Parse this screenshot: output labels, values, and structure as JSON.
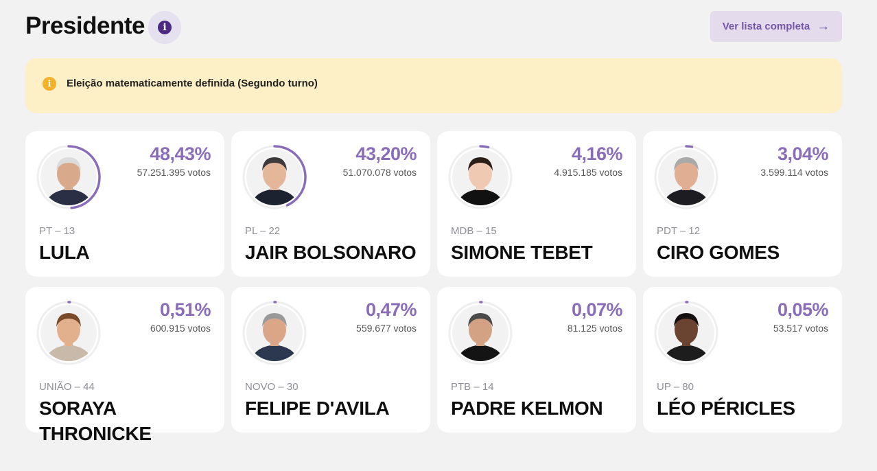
{
  "header": {
    "title": "Presidente",
    "info_icon": "info-icon",
    "full_list_label": "Ver lista completa",
    "arrow_icon": "arrow-right-icon"
  },
  "alert": {
    "icon": "info-icon",
    "text": "Eleição matematicamente definida (Segundo turno)"
  },
  "colors": {
    "accent": "#8a6db9",
    "alert_bg": "#fdefc6",
    "alert_icon": "#f6b12b"
  },
  "candidates": [
    {
      "percent_label": "48,43%",
      "percent": 48.43,
      "votes": "57.251.395 votos",
      "party": "PT – 13",
      "name": "LULA",
      "skin": "#d9a98b",
      "hair": "#dcdcdc",
      "shirt": "#2a2f45"
    },
    {
      "percent_label": "43,20%",
      "percent": 43.2,
      "votes": "51.070.078 votos",
      "party": "PL – 22",
      "name": "JAIR BOLSONARO",
      "skin": "#e4b69a",
      "hair": "#3c3a3a",
      "shirt": "#1d2230"
    },
    {
      "percent_label": "4,16%",
      "percent": 4.16,
      "votes": "4.915.185 votos",
      "party": "MDB – 15",
      "name": "SIMONE TEBET",
      "skin": "#efc9b2",
      "hair": "#2b1d18",
      "shirt": "#111111"
    },
    {
      "percent_label": "3,04%",
      "percent": 3.04,
      "votes": "3.599.114 votos",
      "party": "PDT – 12",
      "name": "CIRO GOMES",
      "skin": "#e0ae93",
      "hair": "#a9a9a9",
      "shirt": "#1c1c22"
    },
    {
      "percent_label": "0,51%",
      "percent": 0.51,
      "votes": "600.915 votos",
      "party": "UNIÃO – 44",
      "name": "SORAYA THRONICKE",
      "skin": "#e3b08d",
      "hair": "#7a4a2a",
      "shirt": "#c9b9a8"
    },
    {
      "percent_label": "0,47%",
      "percent": 0.47,
      "votes": "559.677 votos",
      "party": "NOVO – 30",
      "name": "FELIPE D'AVILA",
      "skin": "#dba688",
      "hair": "#9a9a9a",
      "shirt": "#2b3850"
    },
    {
      "percent_label": "0,07%",
      "percent": 0.07,
      "votes": "81.125 votos",
      "party": "PTB – 14",
      "name": "PADRE KELMON",
      "skin": "#d3a184",
      "hair": "#4b4b4b",
      "shirt": "#141414"
    },
    {
      "percent_label": "0,05%",
      "percent": 0.05,
      "votes": "53.517 votos",
      "party": "UP – 80",
      "name": "LÉO PÉRICLES",
      "skin": "#6a4431",
      "hair": "#141010",
      "shirt": "#1d1d1d"
    }
  ]
}
